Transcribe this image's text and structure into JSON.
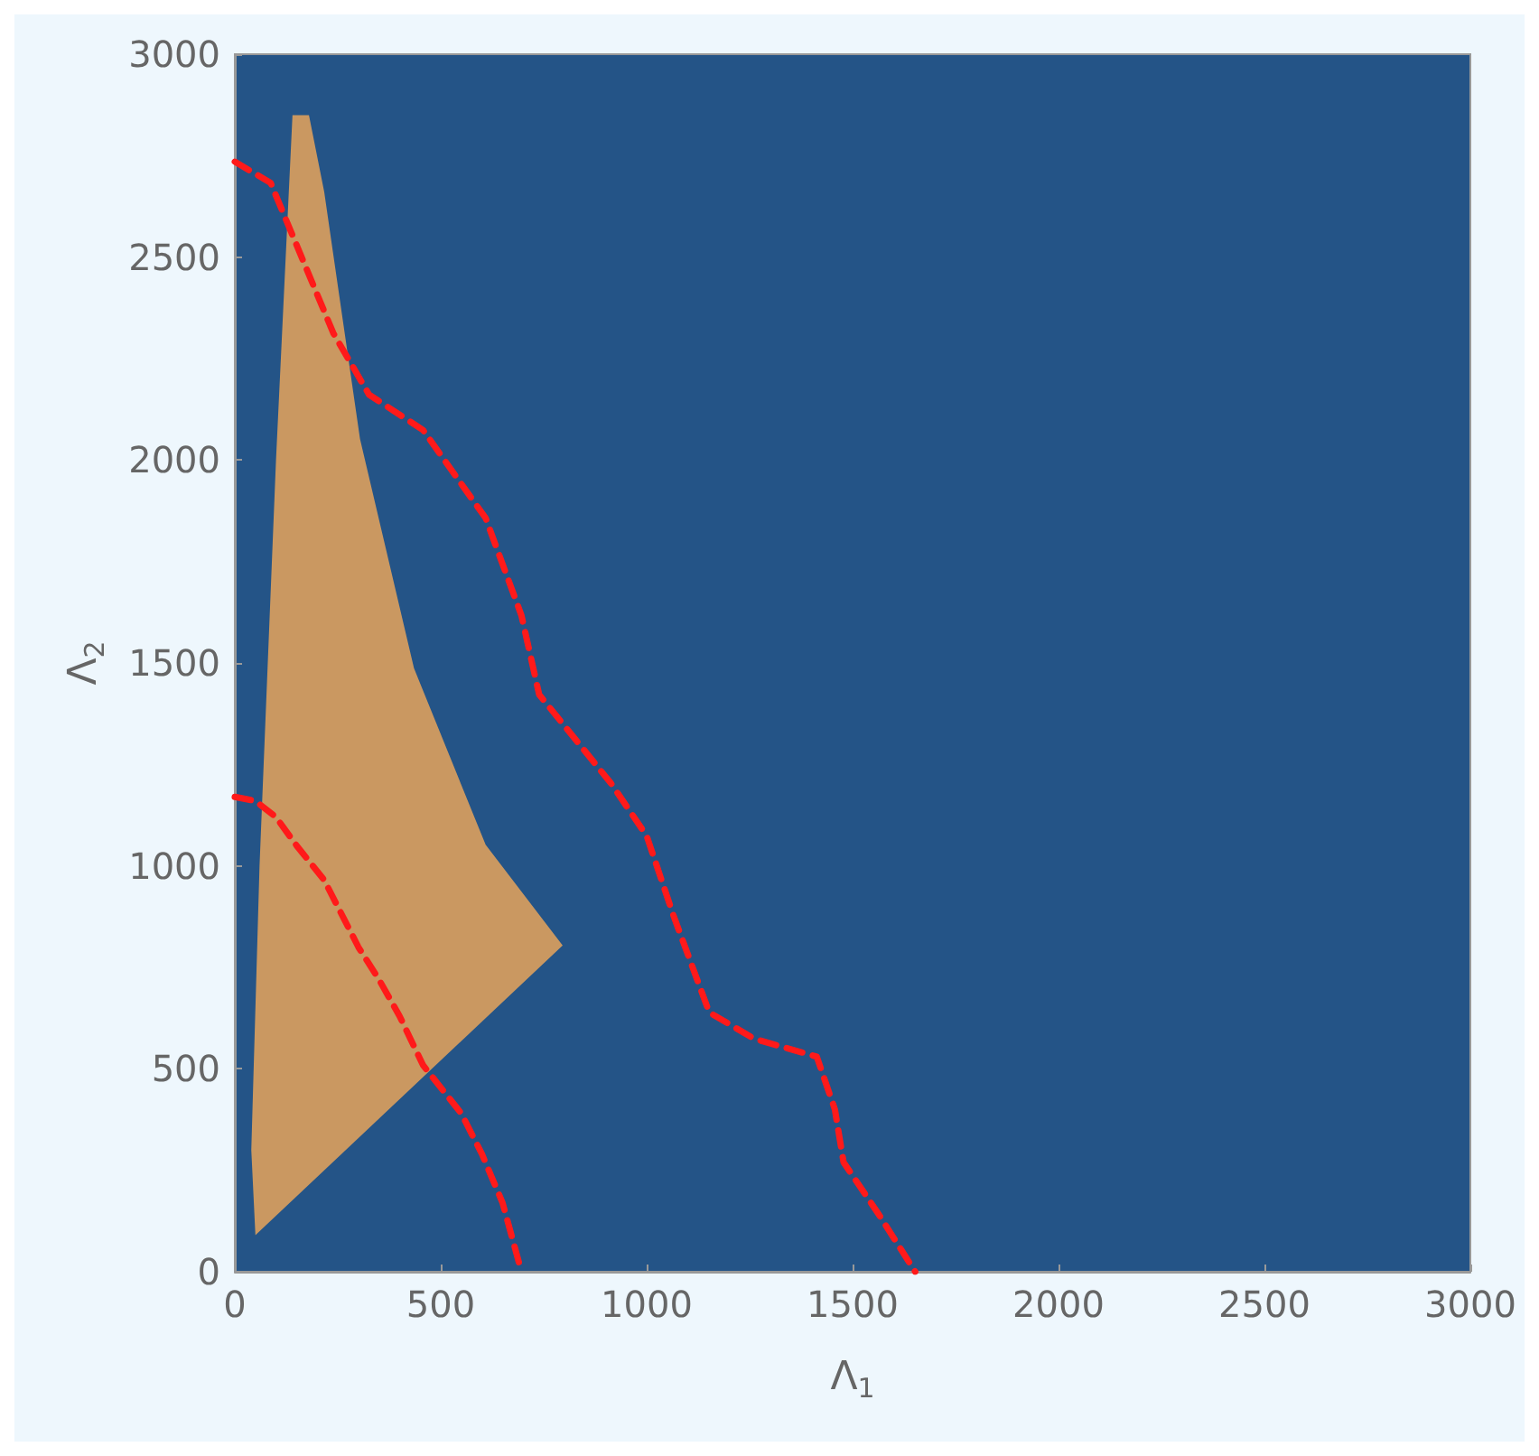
{
  "chart_data": {
    "type": "line",
    "xlabel": "Λ$_{1}$",
    "ylabel": "Λ$_{2}$",
    "xlim": [
      0,
      3000
    ],
    "ylim": [
      0,
      3000
    ],
    "xticks": [
      0,
      500,
      1000,
      1500,
      2000,
      2500,
      3000
    ],
    "yticks": [
      0,
      500,
      1000,
      1500,
      2000,
      2500,
      3000
    ],
    "line_style": "dashed",
    "marker": "none",
    "series": [
      {
        "type": "area",
        "color": "#e8a55a",
        "x": [
          50,
          796,
          609,
          435,
          304,
          217,
          180,
          140,
          100,
          60,
          40
        ],
        "values": [
          90,
          804,
          1052,
          1487,
          2052,
          2661,
          2850,
          2850,
          2000,
          1000,
          300
        ]
      },
      {
        "color": "#ff1a1a",
        "x": [
          0,
          50,
          100,
          150,
          217,
          300,
          350,
          400,
          457,
          550,
          600,
          650,
          696
        ],
        "values": [
          1170,
          1160,
          1120,
          1050,
          965,
          800,
          720,
          630,
          509,
          390,
          290,
          170,
          0
        ]
      },
      {
        "color": "#ff1a1a",
        "x": [
          0,
          87,
          239,
          326,
          457,
          609,
          696,
          739,
          826,
          913,
          1000,
          1065,
          1152,
          1261,
          1413,
          1457,
          1478,
          1565,
          1652
        ],
        "values": [
          2735,
          2683,
          2313,
          2161,
          2074,
          1857,
          1617,
          1422,
          1313,
          1204,
          1074,
          878,
          639,
          574,
          530,
          400,
          270,
          139,
          0
        ]
      }
    ]
  }
}
